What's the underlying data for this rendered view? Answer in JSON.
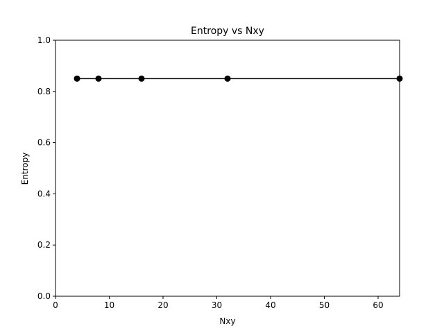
{
  "chart_data": {
    "type": "line",
    "title": "Entropy vs Nxy",
    "xlabel": "Nxy",
    "ylabel": "Entropy",
    "xlim": [
      0,
      64
    ],
    "ylim": [
      0.0,
      1.0
    ],
    "xticks": [
      0,
      10,
      20,
      30,
      40,
      50,
      60
    ],
    "xtick_labels": [
      "0",
      "10",
      "20",
      "30",
      "40",
      "50",
      "60"
    ],
    "yticks": [
      0.0,
      0.2,
      0.4,
      0.6,
      0.8,
      1.0
    ],
    "ytick_labels": [
      "0.0",
      "0.2",
      "0.4",
      "0.6",
      "0.8",
      "1.0"
    ],
    "grid": false,
    "series": [
      {
        "x": [
          4,
          8,
          16,
          32,
          64
        ],
        "y": [
          0.85,
          0.85,
          0.85,
          0.85,
          0.85
        ],
        "color": "#000000",
        "marker": "circle"
      }
    ]
  }
}
